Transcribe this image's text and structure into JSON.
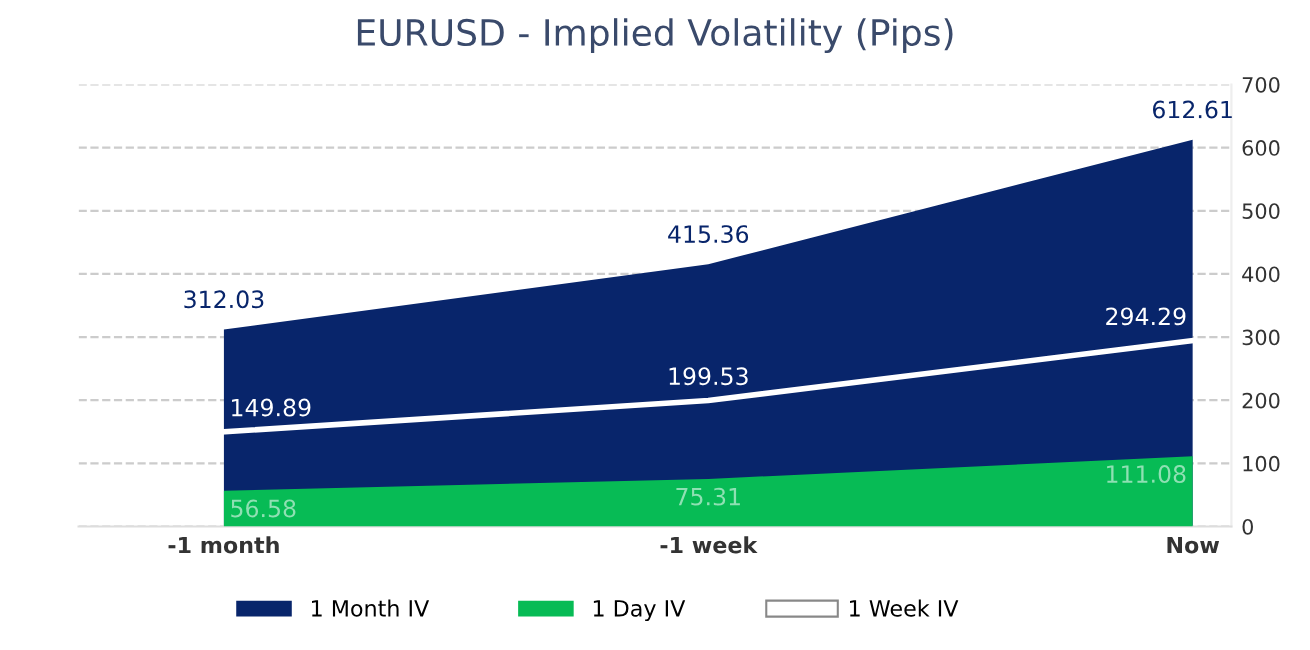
{
  "chart_data": {
    "type": "area",
    "title": "EURUSD - Implied Volatility (Pips)",
    "categories": [
      "-1 month",
      "-1 week",
      "Now"
    ],
    "series": [
      {
        "name": "1 Month IV",
        "color": "#08256b",
        "values": [
          312.03,
          415.36,
          612.61
        ]
      },
      {
        "name": "1 Day IV",
        "color": "#07bb55",
        "values": [
          56.58,
          75.31,
          111.08
        ]
      },
      {
        "name": "1 Week IV",
        "type": "line",
        "color": "#ffffff",
        "values": [
          149.89,
          199.53,
          294.29
        ]
      }
    ],
    "ylim": [
      0,
      700
    ],
    "yticks": [
      0,
      100,
      200,
      300,
      400,
      500,
      600,
      700
    ],
    "grid": "y",
    "legend": "bottom",
    "data_labels": true
  }
}
